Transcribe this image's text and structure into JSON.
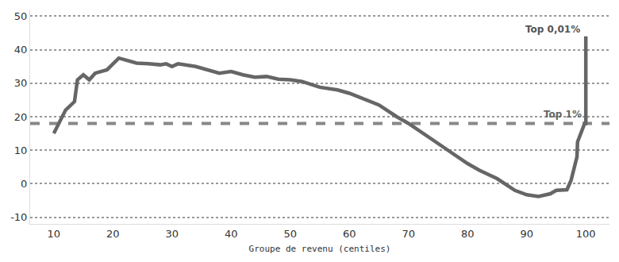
{
  "chart_data": {
    "type": "line",
    "x_label": "Groupe de revenu (centiles)",
    "x": [
      10,
      12,
      13.5,
      14,
      15,
      16,
      17,
      19,
      21,
      22,
      24,
      26,
      28,
      29,
      30,
      31,
      34,
      38,
      40,
      42,
      44,
      46,
      48,
      50,
      52,
      55,
      58,
      60,
      62,
      65,
      68,
      70,
      75,
      80,
      82,
      85,
      88,
      90,
      92,
      94,
      95,
      96.8,
      97.5,
      98.5,
      98.6,
      99.8,
      100,
      100
    ],
    "values": [
      15,
      22,
      24.5,
      31,
      32.5,
      31,
      33,
      34,
      37.5,
      37,
      36,
      35.8,
      35.5,
      35.8,
      35,
      35.8,
      35,
      33,
      33.5,
      32.5,
      31.8,
      32,
      31.2,
      31,
      30.5,
      28.8,
      28,
      27,
      25.5,
      23.5,
      20,
      18,
      12,
      6,
      4,
      1.5,
      -2,
      -3.3,
      -3.8,
      -3,
      -2,
      -1.8,
      1,
      8,
      12.5,
      18,
      18,
      44
    ],
    "color": "#666666",
    "reference_line": {
      "value": 18,
      "label": "Top 1%",
      "color": "#888888",
      "line_style": "dashed"
    },
    "annotations": [
      {
        "text": "Top 0,01%",
        "x": 99.3,
        "y": 46
      }
    ],
    "xlim": [
      6,
      104
    ],
    "xticks": [
      10,
      20,
      30,
      40,
      50,
      60,
      70,
      80,
      90,
      100
    ],
    "ylim": [
      -12,
      52
    ],
    "yticks": [
      -10,
      0,
      10,
      20,
      30,
      40,
      50
    ],
    "grid": true
  }
}
